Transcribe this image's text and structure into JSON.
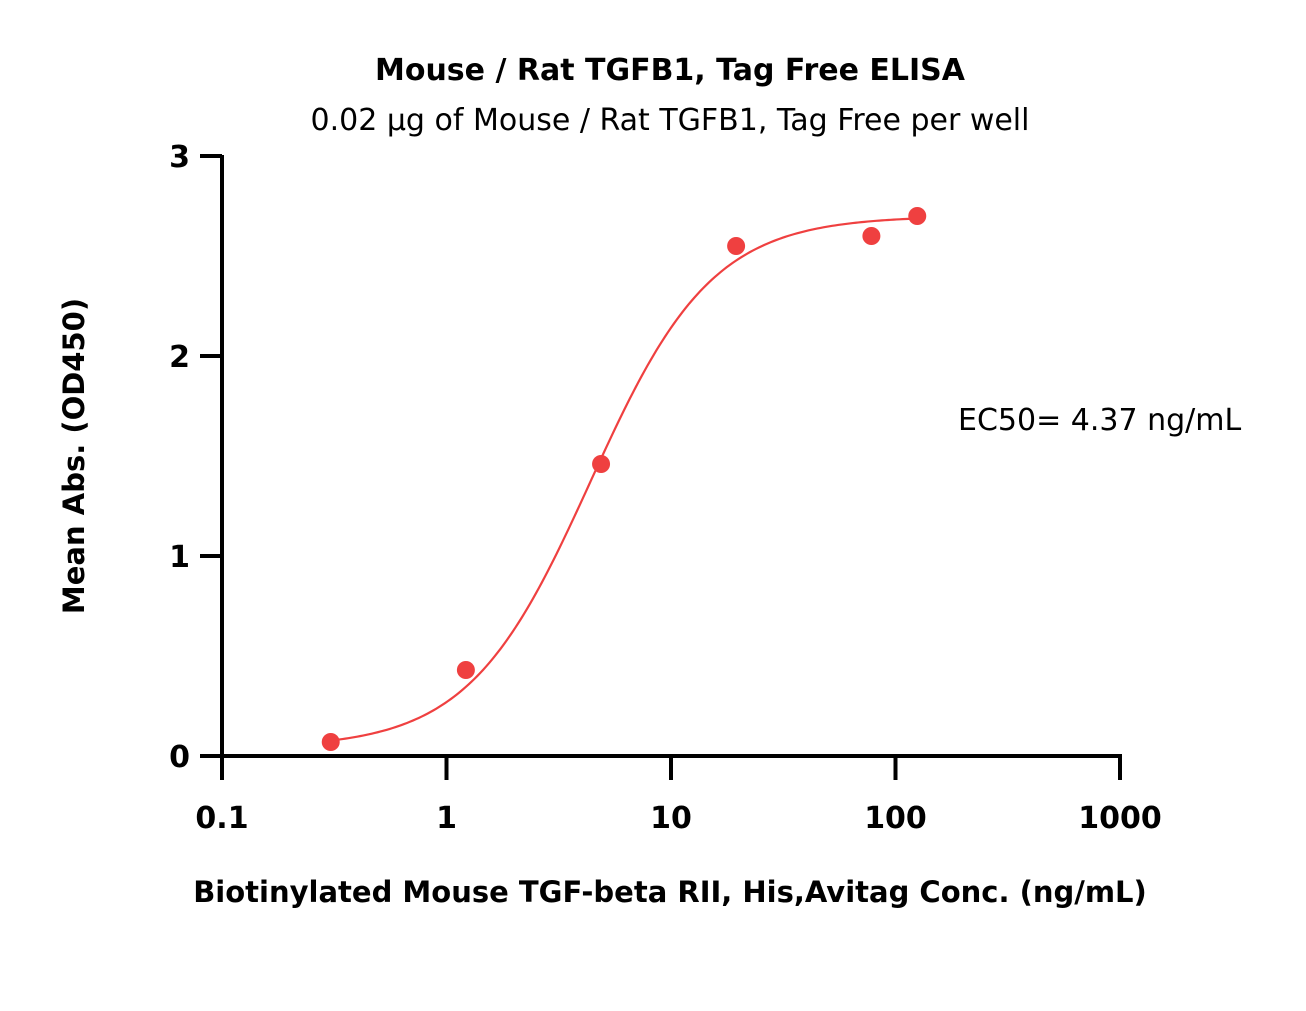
{
  "chart_data": {
    "type": "scatter",
    "title": "Mouse / Rat TGFB1, Tag Free ELISA",
    "subtitle": "0.02 μg of Mouse / Rat TGFB1, Tag Free per well",
    "xlabel": "Biotinylated Mouse TGF-beta RII, His,Avitag Conc. (ng/mL)",
    "ylabel": "Mean Abs. (OD450)",
    "x_scale": "log",
    "xlim": [
      0.1,
      1000
    ],
    "ylim": [
      0,
      3
    ],
    "x_ticks": [
      0.1,
      1,
      10,
      100,
      1000
    ],
    "x_tick_labels": [
      "0.1",
      "1",
      "10",
      "100",
      "1000"
    ],
    "y_ticks": [
      0,
      1,
      2,
      3
    ],
    "y_tick_labels": [
      "0",
      "1",
      "2",
      "3"
    ],
    "grid": false,
    "series": [
      {
        "color": "#ef4040",
        "points": [
          {
            "x": 0.305,
            "y": 0.07
          },
          {
            "x": 1.22,
            "y": 0.43
          },
          {
            "x": 4.88,
            "y": 1.46
          },
          {
            "x": 19.5,
            "y": 2.55
          },
          {
            "x": 78.1,
            "y": 2.6
          },
          {
            "x": 125,
            "y": 2.7
          }
        ],
        "fit": {
          "model": "4PL",
          "bottom": 0.04,
          "top": 2.7,
          "ec50": 4.37,
          "hill": 1.6,
          "x_range": [
            0.305,
            125
          ]
        }
      }
    ],
    "annotations": [
      {
        "text": "EC50= 4.37 ng/mL"
      }
    ]
  }
}
